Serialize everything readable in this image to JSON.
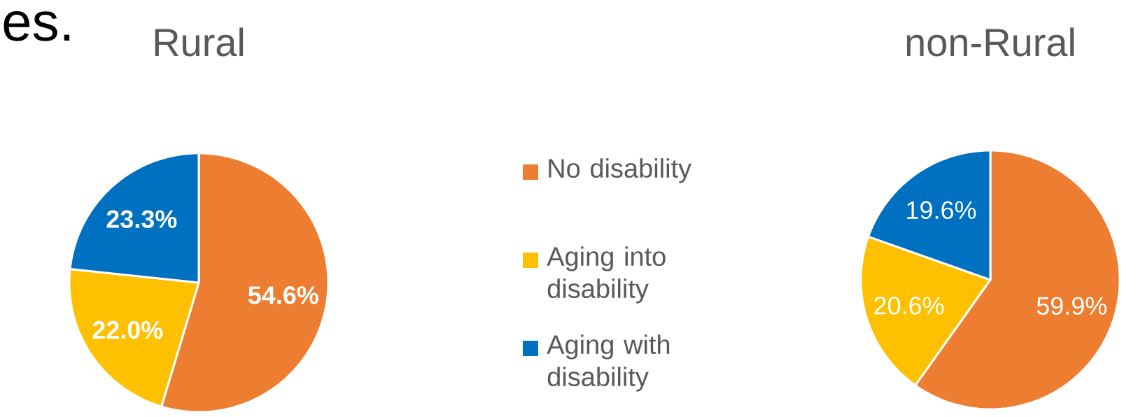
{
  "chart_data": [
    {
      "type": "pie",
      "title": "Rural",
      "annotations": [
        "es."
      ],
      "categories": [
        "No disability",
        "Aging into disability",
        "Aging with disability"
      ],
      "values": [
        54.6,
        22.0,
        23.3
      ],
      "colors": [
        "#ed7d31",
        "#ffc000",
        "#0070c0"
      ],
      "value_labels": [
        "54.6%",
        "22.0%",
        "23.3%"
      ],
      "legend": "right"
    },
    {
      "type": "pie",
      "title": "non-Rural",
      "categories": [
        null,
        null,
        null
      ],
      "values": [
        59.9,
        20.6,
        19.6
      ],
      "colors": [
        "#ed7d31",
        "#ffc000",
        "#0070c0"
      ],
      "value_labels": [
        "59.9%",
        "20.6%",
        "19.6%"
      ]
    }
  ]
}
